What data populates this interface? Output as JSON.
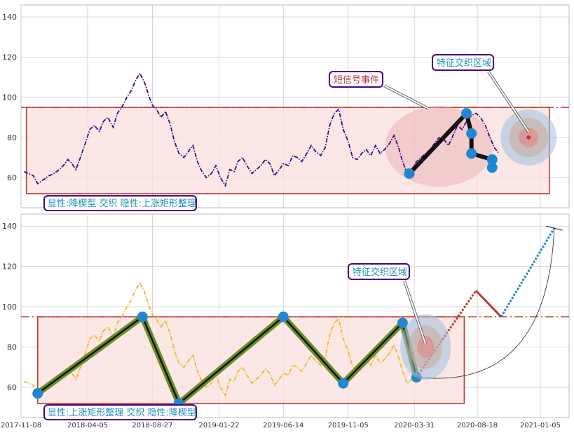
{
  "chart_data": [
    {
      "type": "line",
      "title": "",
      "xlabel": "",
      "ylabel": "",
      "xlim": [
        "2017-11-08",
        "2021-03-10"
      ],
      "ylim": [
        45,
        146
      ],
      "yticks": [
        60,
        80,
        100,
        120,
        140
      ],
      "grid": true,
      "series": [
        {
          "color": "#4b0082",
          "style": "dash-dot",
          "x": [
            "2017-11-15",
            "2017-11-25",
            "2017-12-05",
            "2017-12-15",
            "2017-12-28",
            "2018-01-10",
            "2018-01-20",
            "2018-02-01",
            "2018-02-10",
            "2018-02-20",
            "2018-03-01",
            "2018-03-10",
            "2018-03-20",
            "2018-04-01",
            "2018-04-10",
            "2018-04-20",
            "2018-05-01",
            "2018-05-10",
            "2018-05-20",
            "2018-06-01",
            "2018-06-10",
            "2018-06-20",
            "2018-07-01",
            "2018-07-10",
            "2018-07-20",
            "2018-07-30",
            "2018-08-10",
            "2018-08-20",
            "2018-08-27",
            "2018-09-05",
            "2018-09-15",
            "2018-09-25",
            "2018-10-05",
            "2018-10-15",
            "2018-10-25",
            "2018-11-05",
            "2018-11-15",
            "2018-11-25",
            "2018-12-05",
            "2018-12-15",
            "2018-12-25",
            "2019-01-05",
            "2019-01-15",
            "2019-01-25",
            "2019-02-05",
            "2019-02-15",
            "2019-02-25",
            "2019-03-05",
            "2019-03-15",
            "2019-03-25",
            "2019-04-05",
            "2019-04-15",
            "2019-04-25",
            "2019-05-05",
            "2019-05-15",
            "2019-05-25",
            "2019-06-05",
            "2019-06-14",
            "2019-06-25",
            "2019-07-05",
            "2019-07-15",
            "2019-07-25",
            "2019-08-05",
            "2019-08-15",
            "2019-08-25",
            "2019-09-05",
            "2019-09-15",
            "2019-09-25",
            "2019-10-05",
            "2019-10-15",
            "2019-10-25",
            "2019-11-05",
            "2019-11-15",
            "2019-11-25",
            "2019-12-05",
            "2019-12-15",
            "2019-12-25",
            "2020-01-05",
            "2020-01-15",
            "2020-01-25",
            "2020-02-05",
            "2020-02-15",
            "2020-02-25",
            "2020-03-05",
            "2020-03-15",
            "2020-03-25",
            "2020-04-05",
            "2020-04-15",
            "2020-04-25",
            "2020-05-05",
            "2020-05-15",
            "2020-05-25",
            "2020-06-05",
            "2020-06-15",
            "2020-06-25",
            "2020-07-05",
            "2020-07-15",
            "2020-07-25",
            "2020-08-05",
            "2020-08-15",
            "2020-08-25",
            "2020-09-05",
            "2020-09-15",
            "2020-09-25",
            "2020-10-05"
          ],
          "y": [
            63,
            62,
            61,
            57,
            59,
            61,
            62,
            64,
            66,
            69,
            67,
            64,
            70,
            78,
            84,
            86,
            83,
            88,
            90,
            85,
            92,
            95,
            100,
            103,
            108,
            112,
            107,
            100,
            96,
            94,
            90,
            93,
            87,
            78,
            72,
            70,
            73,
            76,
            68,
            63,
            60,
            62,
            66,
            60,
            56,
            64,
            63,
            68,
            70,
            66,
            62,
            64,
            66,
            69,
            67,
            61,
            64,
            67,
            66,
            71,
            70,
            68,
            72,
            76,
            73,
            71,
            75,
            86,
            92,
            94,
            84,
            78,
            70,
            69,
            72,
            74,
            71,
            76,
            72,
            74,
            77,
            81,
            75,
            68,
            62,
            64,
            68,
            70,
            72,
            74,
            77,
            80,
            79,
            76,
            81,
            86,
            84,
            88,
            91,
            92,
            90,
            86,
            80,
            75,
            72
          ]
        }
      ]
    },
    {
      "type": "line",
      "title": "",
      "xlabel": "",
      "ylabel": "",
      "xlim": [
        "2017-11-08",
        "2021-03-10"
      ],
      "ylim": [
        45,
        146
      ],
      "yticks": [
        60,
        80,
        100,
        120,
        140
      ],
      "xticks": [
        "2017-11-08",
        "2018-04-05",
        "2018-08-27",
        "2019-01-22",
        "2019-06-14",
        "2019-11-05",
        "2020-03-31",
        "2020-08-18",
        "2021-01-05"
      ],
      "grid": true,
      "series": [
        {
          "color": "#f0b429",
          "style": "dash-dot",
          "x": [
            "2017-11-15",
            "2017-11-25",
            "2017-12-05",
            "2017-12-15",
            "2017-12-28",
            "2018-01-10",
            "2018-01-20",
            "2018-02-01",
            "2018-02-10",
            "2018-02-20",
            "2018-03-01",
            "2018-03-10",
            "2018-03-20",
            "2018-04-01",
            "2018-04-10",
            "2018-04-20",
            "2018-05-01",
            "2018-05-10",
            "2018-05-20",
            "2018-06-01",
            "2018-06-10",
            "2018-06-20",
            "2018-07-01",
            "2018-07-10",
            "2018-07-20",
            "2018-07-30",
            "2018-08-10",
            "2018-08-20",
            "2018-08-27",
            "2018-09-05",
            "2018-09-15",
            "2018-09-25",
            "2018-10-05",
            "2018-10-15",
            "2018-10-25",
            "2018-11-05",
            "2018-11-15",
            "2018-11-25",
            "2018-12-05",
            "2018-12-15",
            "2018-12-25",
            "2019-01-05",
            "2019-01-15",
            "2019-01-25",
            "2019-02-05",
            "2019-02-15",
            "2019-02-25",
            "2019-03-05",
            "2019-03-15",
            "2019-03-25",
            "2019-04-05",
            "2019-04-15",
            "2019-04-25",
            "2019-05-05",
            "2019-05-15",
            "2019-05-25",
            "2019-06-05",
            "2019-06-14",
            "2019-06-25",
            "2019-07-05",
            "2019-07-15",
            "2019-07-25",
            "2019-08-05",
            "2019-08-15",
            "2019-08-25",
            "2019-09-05",
            "2019-09-15",
            "2019-09-25",
            "2019-10-05",
            "2019-10-15",
            "2019-10-25",
            "2019-11-05",
            "2019-11-15",
            "2019-11-25",
            "2019-12-05",
            "2019-12-15",
            "2019-12-25",
            "2020-01-05",
            "2020-01-15",
            "2020-01-25",
            "2020-02-05",
            "2020-02-15",
            "2020-02-25",
            "2020-03-05",
            "2020-03-15",
            "2020-03-25",
            "2020-04-05"
          ],
          "y": [
            63,
            62,
            61,
            57,
            59,
            61,
            62,
            64,
            66,
            69,
            67,
            64,
            70,
            78,
            84,
            86,
            83,
            88,
            90,
            85,
            92,
            95,
            100,
            103,
            108,
            112,
            107,
            100,
            96,
            94,
            90,
            93,
            87,
            78,
            72,
            70,
            73,
            76,
            68,
            63,
            60,
            62,
            66,
            60,
            56,
            64,
            63,
            68,
            70,
            66,
            62,
            64,
            66,
            69,
            67,
            61,
            64,
            67,
            66,
            71,
            70,
            68,
            72,
            76,
            73,
            71,
            75,
            86,
            92,
            94,
            84,
            78,
            70,
            69,
            72,
            74,
            71,
            76,
            72,
            74,
            77,
            81,
            75,
            68,
            62,
            64,
            68
          ]
        }
      ]
    }
  ],
  "top_panel": {
    "label_bottom": "显性:降楔型 交织 隐性:上涨矩形整理",
    "annotation_event": "短信号事件",
    "annotation_zone": "特征交织区域",
    "neckline": 95,
    "rect": {
      "x0": "2017-11-20",
      "x1": "2021-01-25",
      "y0": 52,
      "y1": 95
    },
    "zigzag": {
      "x": [
        "2020-03-20",
        "2020-07-25",
        "2020-08-05",
        "2020-08-05",
        "2020-09-20",
        "2020-09-20"
      ],
      "y": [
        62,
        92,
        82,
        72,
        69,
        65
      ]
    },
    "ellipse": {
      "cx": "2020-05-25",
      "cy": 75.5,
      "rx_days": 120,
      "ry": 20
    }
  },
  "bottom_panel": {
    "label_bottom": "显性:上涨矩形整理 交织 隐性:降楔型",
    "annotation_zone": "特征交织区域",
    "neckline": 95,
    "rect": {
      "x0": "2017-12-15",
      "x1": "2020-07-20",
      "y0": 52,
      "y1": 95
    },
    "zigzag": {
      "x": [
        "2017-12-15",
        "2018-08-05",
        "2018-10-25",
        "2019-06-14",
        "2019-10-25",
        "2020-03-05",
        "2020-04-05"
      ],
      "y": [
        57,
        95,
        52,
        95,
        62,
        92,
        65
      ]
    },
    "projection": {
      "x": [
        "2020-04-05",
        "2020-08-15",
        "2020-10-10",
        "2021-02-05"
      ],
      "y": [
        65,
        108,
        95,
        139
      ]
    }
  },
  "x_tick_labels": [
    "2017-11-08",
    "2018-04-05",
    "2018-08-27",
    "2019-01-22",
    "2019-06-14",
    "2019-11-05",
    "2020-03-31",
    "2020-08-18",
    "2021-01-05"
  ],
  "y_tick_labels": [
    "60",
    "80",
    "100",
    "120",
    "140"
  ],
  "colors": {
    "background": "#ffffff",
    "grid": "#cccccc",
    "neckline": "#c0392b",
    "rect_fill": "#f9e0de",
    "rect_stroke": "#c0392b",
    "marker": "#1f87d0",
    "label_border": "#4b0082",
    "label_text": "#1f8fbf",
    "event_text": "#b03050",
    "zigzag_green": "#6b8e23",
    "projection_red": "#c0392b",
    "projection_blue": "#1f87d0"
  }
}
